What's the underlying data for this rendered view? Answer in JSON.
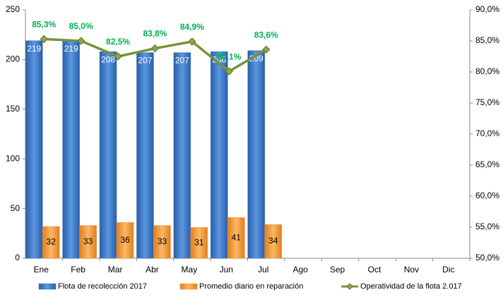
{
  "chart_data": {
    "type": "bar",
    "categories": [
      "Ene",
      "Feb",
      "Mar",
      "Abr",
      "May",
      "Jun",
      "Jul",
      "Ago",
      "Sep",
      "Oct",
      "Nov",
      "Dic"
    ],
    "series": [
      {
        "name": "Flota de recolección 2017",
        "type": "bar",
        "color": "#3c7bd0",
        "values": [
          219,
          219,
          208,
          207,
          207,
          208,
          209,
          null,
          null,
          null,
          null,
          null
        ]
      },
      {
        "name": "Promedio diario en reparación",
        "type": "bar",
        "color": "#f79b3c",
        "values": [
          32,
          33,
          36,
          33,
          31,
          41,
          34,
          null,
          null,
          null,
          null,
          null
        ]
      },
      {
        "name": "Operatividad de la flota 2.017",
        "type": "line",
        "axis": "y2",
        "color": "#77933c",
        "label_color": "#00b050",
        "values": [
          85.3,
          85.0,
          82.5,
          83.8,
          84.9,
          80.1,
          83.6,
          null,
          null,
          null,
          null,
          null
        ],
        "value_labels": [
          "85,3%",
          "85,0%",
          "82,5%",
          "83,8%",
          "84,9%",
          "80,1%",
          "83,6%",
          null,
          null,
          null,
          null,
          null
        ]
      }
    ],
    "ylim": [
      0,
      250
    ],
    "yticks": [
      0,
      50,
      100,
      150,
      200,
      250
    ],
    "y2lim": [
      50,
      90
    ],
    "y2ticks": [
      {
        "value": 50,
        "label": "50,0%"
      },
      {
        "value": 55,
        "label": "55,0%"
      },
      {
        "value": 60,
        "label": "60,0%"
      },
      {
        "value": 65,
        "label": "65,0%"
      },
      {
        "value": 70,
        "label": "70,0%"
      },
      {
        "value": 75,
        "label": "75,0%"
      },
      {
        "value": 80,
        "label": "80,0%"
      },
      {
        "value": 85,
        "label": "85,0%"
      },
      {
        "value": 90,
        "label": "90,0%"
      }
    ],
    "grid": false,
    "legend": "bottom"
  }
}
